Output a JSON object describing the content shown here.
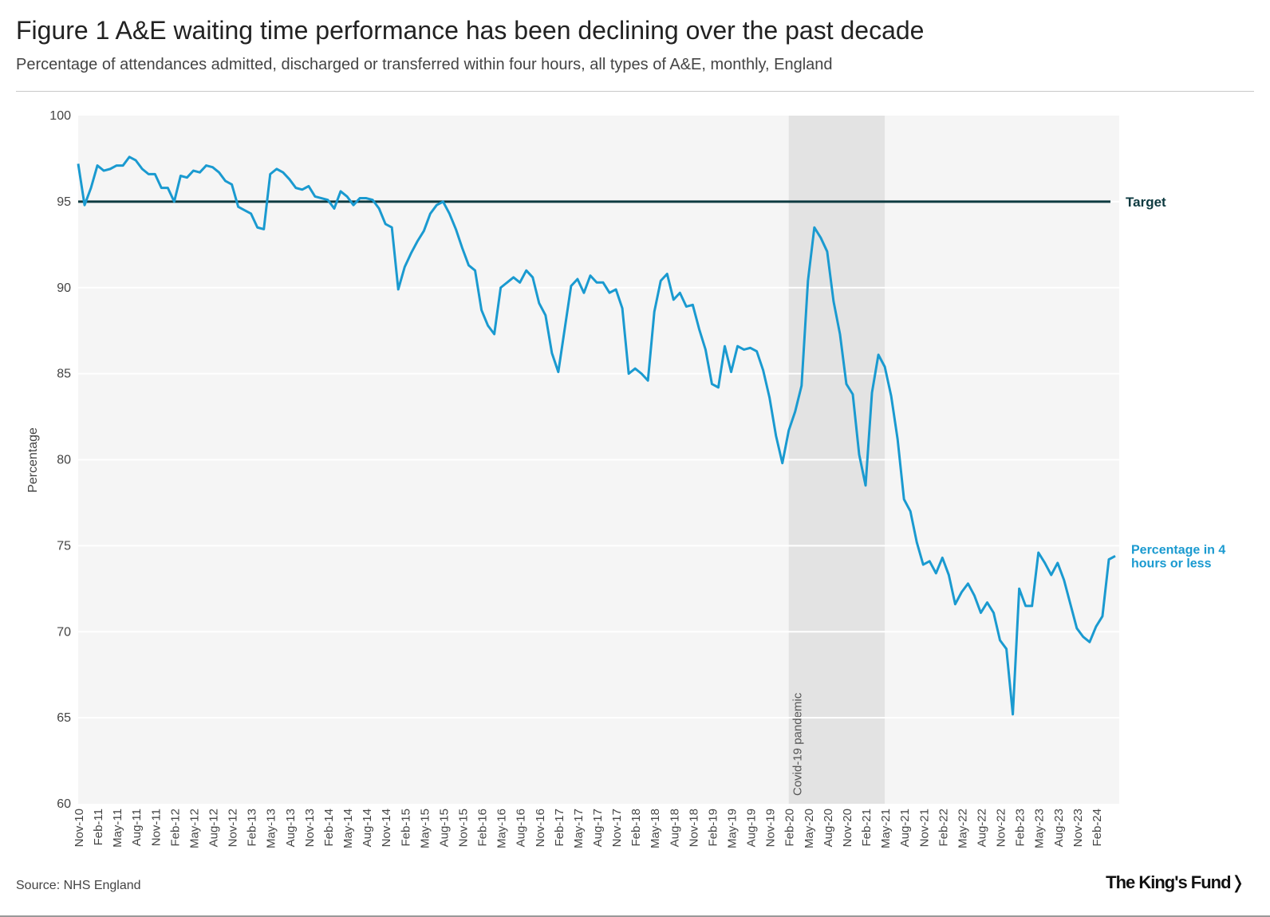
{
  "header": {
    "title": "Figure 1 A&E waiting time performance has been declining over the past decade",
    "subtitle": "Percentage of attendances admitted, discharged or transferred within four hours, all types of A&E, monthly, England"
  },
  "footer": {
    "source": "Source: NHS England",
    "logo": "The King's Fund❭"
  },
  "colors": {
    "series": "#1a9ad0",
    "target": "#0d3a40",
    "plot_bg": "#f5f5f5",
    "band": "#e3e3e3",
    "grid": "#ffffff"
  },
  "chart_data": {
    "type": "line",
    "title": "Figure 1 A&E waiting time performance has been declining over the past decade",
    "ylabel": "Percentage",
    "xlabel": "",
    "ylim": [
      60,
      100
    ],
    "yticks": [
      60,
      65,
      70,
      75,
      80,
      85,
      90,
      95,
      100
    ],
    "start_month": "Nov-10",
    "xtick_labels": [
      "Nov-10",
      "Feb-11",
      "May-11",
      "Aug-11",
      "Nov-11",
      "Feb-12",
      "May-12",
      "Aug-12",
      "Nov-12",
      "Feb-13",
      "May-13",
      "Aug-13",
      "Nov-13",
      "Feb-14",
      "May-14",
      "Aug-14",
      "Nov-14",
      "Feb-15",
      "May-15",
      "Aug-15",
      "Nov-15",
      "Feb-16",
      "May-16",
      "Aug-16",
      "Nov-16",
      "Feb-17",
      "May-17",
      "Aug-17",
      "Nov-17",
      "Feb-18",
      "May-18",
      "Aug-18",
      "Nov-18",
      "Feb-19",
      "May-19",
      "Aug-19",
      "Nov-19",
      "Feb-20",
      "May-20",
      "Aug-20",
      "Nov-20",
      "Feb-21",
      "May-21",
      "Aug-21",
      "Nov-21",
      "Feb-22",
      "May-22",
      "Aug-22",
      "Nov-22",
      "Feb-23",
      "May-23",
      "Aug-23",
      "Nov-23",
      "Feb-24"
    ],
    "target": {
      "value": 95,
      "label": "Target"
    },
    "band": {
      "start_month": "Feb-20",
      "end_month": "May-21",
      "label": "Covid-19 pandemic"
    },
    "series": [
      {
        "name": "Percentage in 4 hours or less",
        "label_lines": [
          "Percentage in 4",
          "hours or less"
        ],
        "values": [
          97.2,
          94.8,
          95.8,
          97.1,
          96.8,
          96.9,
          97.1,
          97.1,
          97.6,
          97.4,
          96.9,
          96.6,
          96.6,
          95.8,
          95.8,
          95.0,
          96.5,
          96.4,
          96.8,
          96.7,
          97.1,
          97.0,
          96.7,
          96.2,
          96.0,
          94.7,
          94.5,
          94.3,
          93.5,
          93.4,
          96.6,
          96.9,
          96.7,
          96.3,
          95.8,
          95.7,
          95.9,
          95.3,
          95.2,
          95.1,
          94.6,
          95.6,
          95.3,
          94.8,
          95.2,
          95.2,
          95.1,
          94.6,
          93.7,
          93.5,
          89.9,
          91.2,
          92.0,
          92.7,
          93.3,
          94.3,
          94.8,
          95.0,
          94.3,
          93.4,
          92.3,
          91.3,
          91.0,
          88.7,
          87.8,
          87.3,
          90.0,
          90.3,
          90.6,
          90.3,
          91.0,
          90.6,
          89.1,
          88.4,
          86.2,
          85.1,
          87.6,
          90.1,
          90.5,
          89.7,
          90.7,
          90.3,
          90.3,
          89.7,
          89.9,
          88.8,
          85.0,
          85.3,
          85.0,
          84.6,
          88.6,
          90.4,
          90.8,
          89.3,
          89.7,
          88.9,
          89.0,
          87.6,
          86.4,
          84.4,
          84.2,
          86.6,
          85.1,
          86.6,
          86.4,
          86.5,
          86.3,
          85.2,
          83.6,
          81.4,
          79.8,
          81.7,
          82.8,
          84.3,
          90.4,
          93.5,
          92.9,
          92.1,
          89.2,
          87.3,
          84.4,
          83.8,
          80.3,
          78.5,
          83.9,
          86.1,
          85.4,
          83.7,
          81.2,
          77.7,
          77.0,
          75.2,
          73.9,
          74.1,
          73.4,
          74.3,
          73.3,
          71.6,
          72.3,
          72.8,
          72.1,
          71.1,
          71.7,
          71.1,
          69.5,
          69.0,
          65.2,
          72.5,
          71.5,
          71.5,
          74.6,
          74.0,
          73.3,
          74.0,
          73.0,
          71.6,
          70.2,
          69.7,
          69.4,
          70.3,
          70.9,
          74.2,
          74.4
        ]
      }
    ]
  }
}
